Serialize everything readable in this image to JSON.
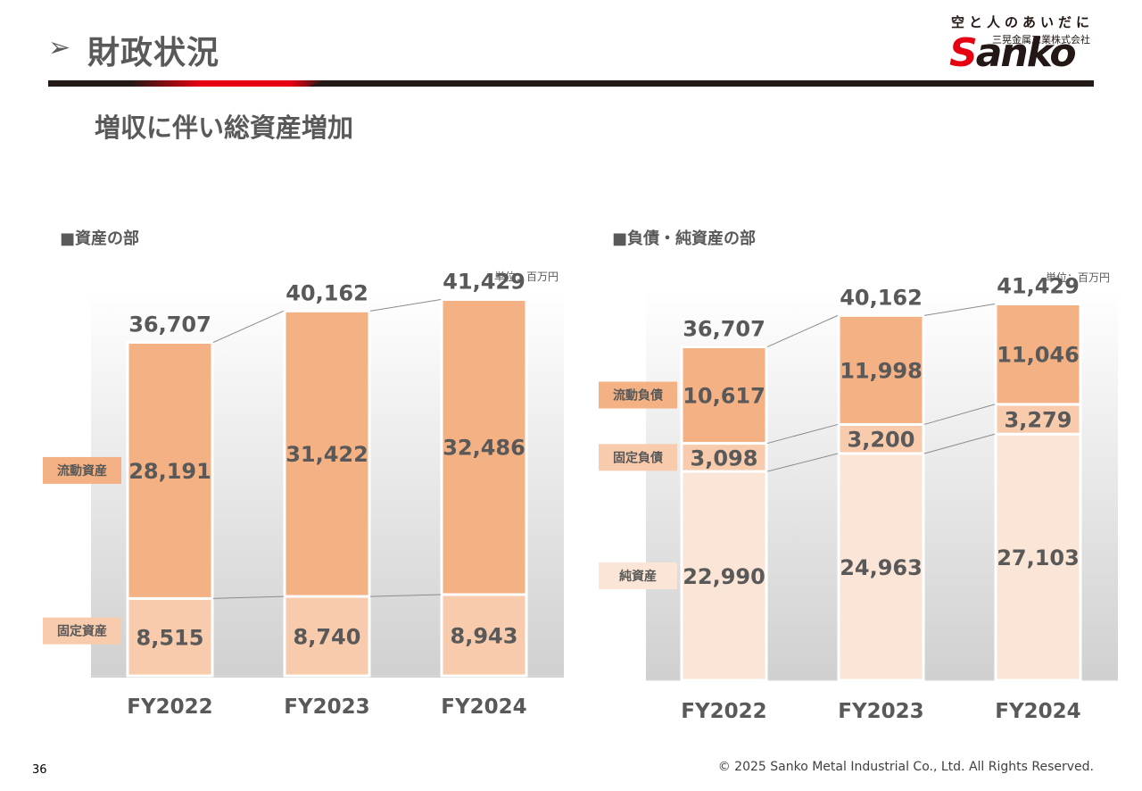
{
  "header": {
    "arrow": "➢",
    "title": "財政状況",
    "logo": {
      "tagline": "空と人のあいだに",
      "company": "三晃金属工業株式会社",
      "wordmark_first": "S",
      "wordmark_rest": "anko"
    }
  },
  "subtitle": "増収に伴い総資産増加",
  "colors": {
    "current": "#f4b183",
    "fixed": "#f8cbad",
    "net": "#fbe5d6",
    "label_text": "#595959"
  },
  "chart_data": [
    {
      "type": "bar",
      "stacked": true,
      "title": "■資産の部",
      "unit": "単位：百万円",
      "categories": [
        "FY2022",
        "FY2023",
        "FY2024"
      ],
      "totals": [
        36707,
        40162,
        41429
      ],
      "total_labels": [
        "36,707",
        "40,162",
        "41,429"
      ],
      "series": [
        {
          "name": "固定資産",
          "values": [
            8515,
            8740,
            8943
          ],
          "labels": [
            "8,515",
            "8,740",
            "8,943"
          ]
        },
        {
          "name": "流動資産",
          "values": [
            28191,
            31422,
            32486
          ],
          "labels": [
            "28,191",
            "31,422",
            "32,486"
          ]
        }
      ]
    },
    {
      "type": "bar",
      "stacked": true,
      "title": "■負債・純資産の部",
      "unit": "単位：百万円",
      "categories": [
        "FY2022",
        "FY2023",
        "FY2024"
      ],
      "totals": [
        36707,
        40162,
        41429
      ],
      "total_labels": [
        "36,707",
        "40,162",
        "41,429"
      ],
      "series": [
        {
          "name": "純資産",
          "values": [
            22990,
            24963,
            27103
          ],
          "labels": [
            "22,990",
            "24,963",
            "27,103"
          ]
        },
        {
          "name": "固定負債",
          "values": [
            3098,
            3200,
            3279
          ],
          "labels": [
            "3,098",
            "3,200",
            "3,279"
          ]
        },
        {
          "name": "流動負債",
          "values": [
            10617,
            11998,
            11046
          ],
          "labels": [
            "10,617",
            "11,998",
            "11,046"
          ]
        }
      ]
    }
  ],
  "footer": {
    "page_number": "36",
    "copyright": "© 2025 Sanko Metal Industrial Co., Ltd. All Rights Reserved."
  }
}
